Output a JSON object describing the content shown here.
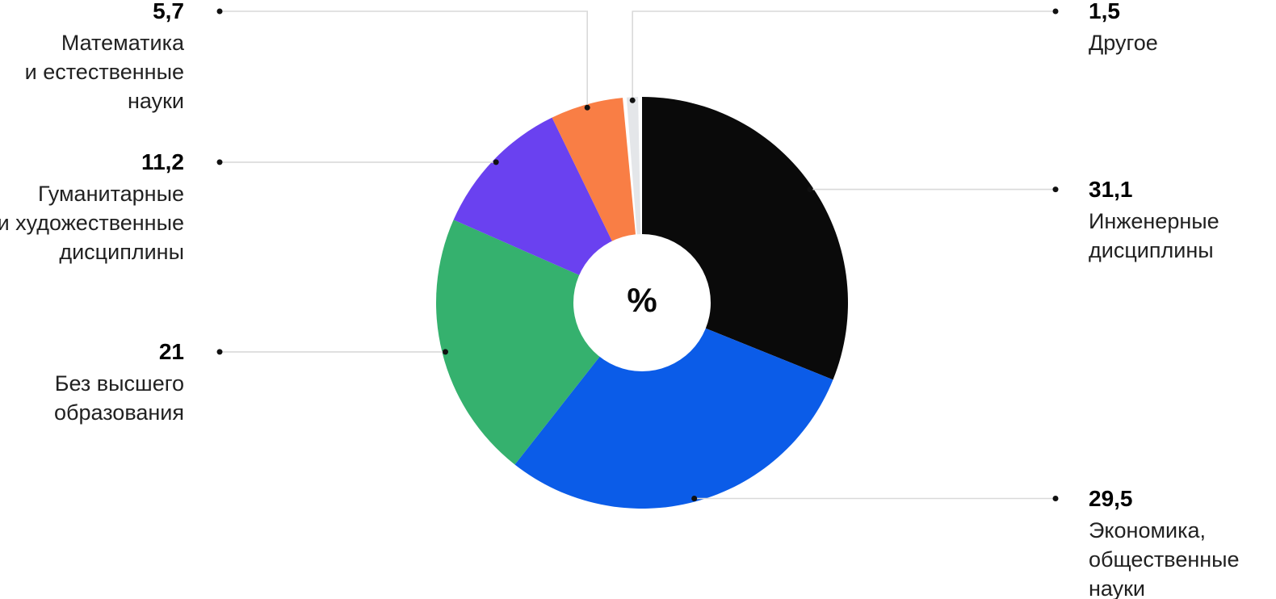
{
  "chart_data": {
    "type": "pie",
    "subtype": "donut",
    "title": "",
    "unit": "%",
    "center_label": "%",
    "total": 100,
    "legend_position": "callouts",
    "slices": [
      {
        "id": "engineering",
        "value": 31.1,
        "value_label": "31,1",
        "lines": [
          "Инженерные",
          "дисциплины"
        ],
        "color": "#0a0a0a",
        "side": "right",
        "callout": "straight"
      },
      {
        "id": "economics-social",
        "value": 29.5,
        "value_label": "29,5",
        "lines": [
          "Экономика,",
          "общественные",
          "науки"
        ],
        "color": "#0b5ce8",
        "side": "right",
        "callout": "straight"
      },
      {
        "id": "no-higher-education",
        "value": 21,
        "value_label": "21",
        "lines": [
          "Без высшего",
          "образования"
        ],
        "color": "#35b16e",
        "side": "left",
        "callout": "straight"
      },
      {
        "id": "humanities-arts",
        "value": 11.2,
        "value_label": "11,2",
        "lines": [
          "Гуманитарные",
          "и художественные",
          "дисциплины"
        ],
        "color": "#6a41f0",
        "side": "left",
        "callout": "straight"
      },
      {
        "id": "math-natural-science",
        "value": 5.7,
        "value_label": "5,7",
        "lines": [
          "Математика",
          "и естественные",
          "науки"
        ],
        "color": "#f97e45",
        "side": "left",
        "callout": "elbow-top"
      },
      {
        "id": "other",
        "value": 1.5,
        "value_label": "1,5",
        "lines": [
          "Другое"
        ],
        "color": "#e4e6e9",
        "side": "right",
        "callout": "elbow-top",
        "pad_deg": 1.1
      }
    ],
    "colors": {
      "leader_line": "#d9d9d9",
      "leader_dot": "#111111",
      "hole": "#ffffff",
      "value_text": "#000000",
      "label_text": "#212121"
    }
  }
}
